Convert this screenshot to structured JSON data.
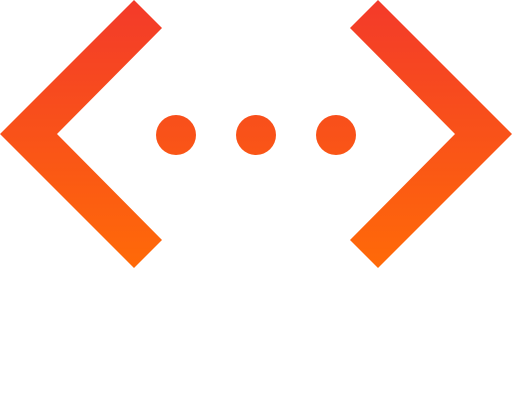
{
  "logo": {
    "icon": "code-brackets-ellipsis-icon",
    "gradient_top": "#f33a2a",
    "gradient_bottom": "#ff6a08",
    "background": "#ffffff"
  }
}
